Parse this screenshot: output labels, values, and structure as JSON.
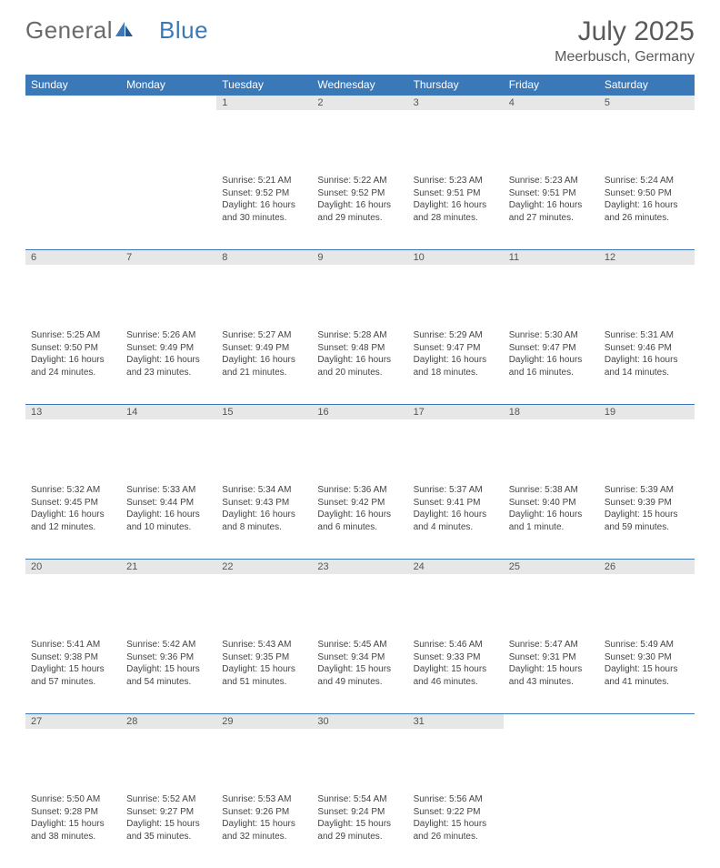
{
  "brand": {
    "part1": "General",
    "part2": "Blue"
  },
  "title": "July 2025",
  "location": "Meerbusch, Germany",
  "colors": {
    "header_bg": "#3b78b8",
    "daynum_bg": "#e7e7e7",
    "text": "#444444",
    "title_text": "#5a5a5a"
  },
  "weekdays": [
    "Sunday",
    "Monday",
    "Tuesday",
    "Wednesday",
    "Thursday",
    "Friday",
    "Saturday"
  ],
  "weeks": [
    [
      {
        "n": "",
        "sr": "",
        "ss": "",
        "dl": ""
      },
      {
        "n": "",
        "sr": "",
        "ss": "",
        "dl": ""
      },
      {
        "n": "1",
        "sr": "Sunrise: 5:21 AM",
        "ss": "Sunset: 9:52 PM",
        "dl": "Daylight: 16 hours and 30 minutes."
      },
      {
        "n": "2",
        "sr": "Sunrise: 5:22 AM",
        "ss": "Sunset: 9:52 PM",
        "dl": "Daylight: 16 hours and 29 minutes."
      },
      {
        "n": "3",
        "sr": "Sunrise: 5:23 AM",
        "ss": "Sunset: 9:51 PM",
        "dl": "Daylight: 16 hours and 28 minutes."
      },
      {
        "n": "4",
        "sr": "Sunrise: 5:23 AM",
        "ss": "Sunset: 9:51 PM",
        "dl": "Daylight: 16 hours and 27 minutes."
      },
      {
        "n": "5",
        "sr": "Sunrise: 5:24 AM",
        "ss": "Sunset: 9:50 PM",
        "dl": "Daylight: 16 hours and 26 minutes."
      }
    ],
    [
      {
        "n": "6",
        "sr": "Sunrise: 5:25 AM",
        "ss": "Sunset: 9:50 PM",
        "dl": "Daylight: 16 hours and 24 minutes."
      },
      {
        "n": "7",
        "sr": "Sunrise: 5:26 AM",
        "ss": "Sunset: 9:49 PM",
        "dl": "Daylight: 16 hours and 23 minutes."
      },
      {
        "n": "8",
        "sr": "Sunrise: 5:27 AM",
        "ss": "Sunset: 9:49 PM",
        "dl": "Daylight: 16 hours and 21 minutes."
      },
      {
        "n": "9",
        "sr": "Sunrise: 5:28 AM",
        "ss": "Sunset: 9:48 PM",
        "dl": "Daylight: 16 hours and 20 minutes."
      },
      {
        "n": "10",
        "sr": "Sunrise: 5:29 AM",
        "ss": "Sunset: 9:47 PM",
        "dl": "Daylight: 16 hours and 18 minutes."
      },
      {
        "n": "11",
        "sr": "Sunrise: 5:30 AM",
        "ss": "Sunset: 9:47 PM",
        "dl": "Daylight: 16 hours and 16 minutes."
      },
      {
        "n": "12",
        "sr": "Sunrise: 5:31 AM",
        "ss": "Sunset: 9:46 PM",
        "dl": "Daylight: 16 hours and 14 minutes."
      }
    ],
    [
      {
        "n": "13",
        "sr": "Sunrise: 5:32 AM",
        "ss": "Sunset: 9:45 PM",
        "dl": "Daylight: 16 hours and 12 minutes."
      },
      {
        "n": "14",
        "sr": "Sunrise: 5:33 AM",
        "ss": "Sunset: 9:44 PM",
        "dl": "Daylight: 16 hours and 10 minutes."
      },
      {
        "n": "15",
        "sr": "Sunrise: 5:34 AM",
        "ss": "Sunset: 9:43 PM",
        "dl": "Daylight: 16 hours and 8 minutes."
      },
      {
        "n": "16",
        "sr": "Sunrise: 5:36 AM",
        "ss": "Sunset: 9:42 PM",
        "dl": "Daylight: 16 hours and 6 minutes."
      },
      {
        "n": "17",
        "sr": "Sunrise: 5:37 AM",
        "ss": "Sunset: 9:41 PM",
        "dl": "Daylight: 16 hours and 4 minutes."
      },
      {
        "n": "18",
        "sr": "Sunrise: 5:38 AM",
        "ss": "Sunset: 9:40 PM",
        "dl": "Daylight: 16 hours and 1 minute."
      },
      {
        "n": "19",
        "sr": "Sunrise: 5:39 AM",
        "ss": "Sunset: 9:39 PM",
        "dl": "Daylight: 15 hours and 59 minutes."
      }
    ],
    [
      {
        "n": "20",
        "sr": "Sunrise: 5:41 AM",
        "ss": "Sunset: 9:38 PM",
        "dl": "Daylight: 15 hours and 57 minutes."
      },
      {
        "n": "21",
        "sr": "Sunrise: 5:42 AM",
        "ss": "Sunset: 9:36 PM",
        "dl": "Daylight: 15 hours and 54 minutes."
      },
      {
        "n": "22",
        "sr": "Sunrise: 5:43 AM",
        "ss": "Sunset: 9:35 PM",
        "dl": "Daylight: 15 hours and 51 minutes."
      },
      {
        "n": "23",
        "sr": "Sunrise: 5:45 AM",
        "ss": "Sunset: 9:34 PM",
        "dl": "Daylight: 15 hours and 49 minutes."
      },
      {
        "n": "24",
        "sr": "Sunrise: 5:46 AM",
        "ss": "Sunset: 9:33 PM",
        "dl": "Daylight: 15 hours and 46 minutes."
      },
      {
        "n": "25",
        "sr": "Sunrise: 5:47 AM",
        "ss": "Sunset: 9:31 PM",
        "dl": "Daylight: 15 hours and 43 minutes."
      },
      {
        "n": "26",
        "sr": "Sunrise: 5:49 AM",
        "ss": "Sunset: 9:30 PM",
        "dl": "Daylight: 15 hours and 41 minutes."
      }
    ],
    [
      {
        "n": "27",
        "sr": "Sunrise: 5:50 AM",
        "ss": "Sunset: 9:28 PM",
        "dl": "Daylight: 15 hours and 38 minutes."
      },
      {
        "n": "28",
        "sr": "Sunrise: 5:52 AM",
        "ss": "Sunset: 9:27 PM",
        "dl": "Daylight: 15 hours and 35 minutes."
      },
      {
        "n": "29",
        "sr": "Sunrise: 5:53 AM",
        "ss": "Sunset: 9:26 PM",
        "dl": "Daylight: 15 hours and 32 minutes."
      },
      {
        "n": "30",
        "sr": "Sunrise: 5:54 AM",
        "ss": "Sunset: 9:24 PM",
        "dl": "Daylight: 15 hours and 29 minutes."
      },
      {
        "n": "31",
        "sr": "Sunrise: 5:56 AM",
        "ss": "Sunset: 9:22 PM",
        "dl": "Daylight: 15 hours and 26 minutes."
      },
      {
        "n": "",
        "sr": "",
        "ss": "",
        "dl": ""
      },
      {
        "n": "",
        "sr": "",
        "ss": "",
        "dl": ""
      }
    ]
  ]
}
